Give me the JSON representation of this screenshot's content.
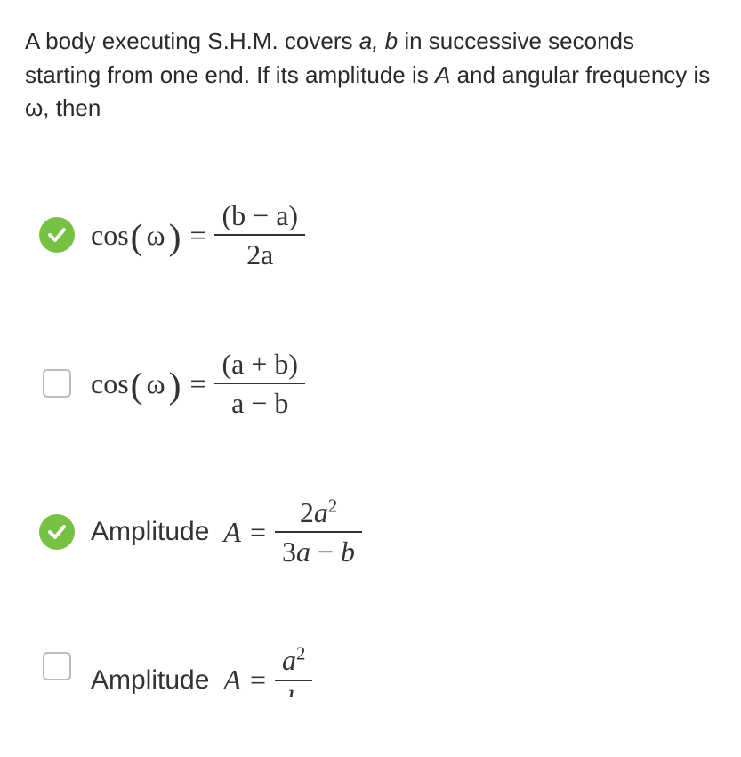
{
  "colors": {
    "correct": "#76c043",
    "text": "#2a2a2a",
    "math": "#333333",
    "checkbox_border": "#bcbcbc",
    "frac_line": "#333333"
  },
  "question": {
    "segments": [
      {
        "t": "A body executing S.H.M. covers ",
        "i": false
      },
      {
        "t": "a, b",
        "i": true
      },
      {
        "t": " in successive seconds starting from one end. If its amplitude is ",
        "i": false
      },
      {
        "t": "A",
        "i": true
      },
      {
        "t": " and angular frequency is ω, then",
        "i": false
      }
    ],
    "fontsize": 26,
    "line_height": 1.45
  },
  "options": [
    {
      "state": "correct",
      "prefix": "",
      "lhs_fn": "cos",
      "lhs_arg": "ω",
      "num": "(b − a)",
      "den": "2a"
    },
    {
      "state": "empty",
      "prefix": "",
      "lhs_fn": "cos",
      "lhs_arg": "ω",
      "num": "(a + b)",
      "den": "a − b"
    },
    {
      "state": "correct",
      "prefix": "Amplitude",
      "lhs_var": "A",
      "num_html": "2a<sup>2</sup>",
      "num": "2a²",
      "den": "3a − b"
    },
    {
      "state": "empty",
      "prefix": "Amplitude",
      "lhs_var": "A",
      "num_html": "a<sup>2</sup>",
      "num": "a²",
      "den": "b",
      "clipped": true
    }
  ],
  "math_style": {
    "fontsize": 32,
    "prefix_fontsize": 30,
    "sup_scale": 0.65
  }
}
